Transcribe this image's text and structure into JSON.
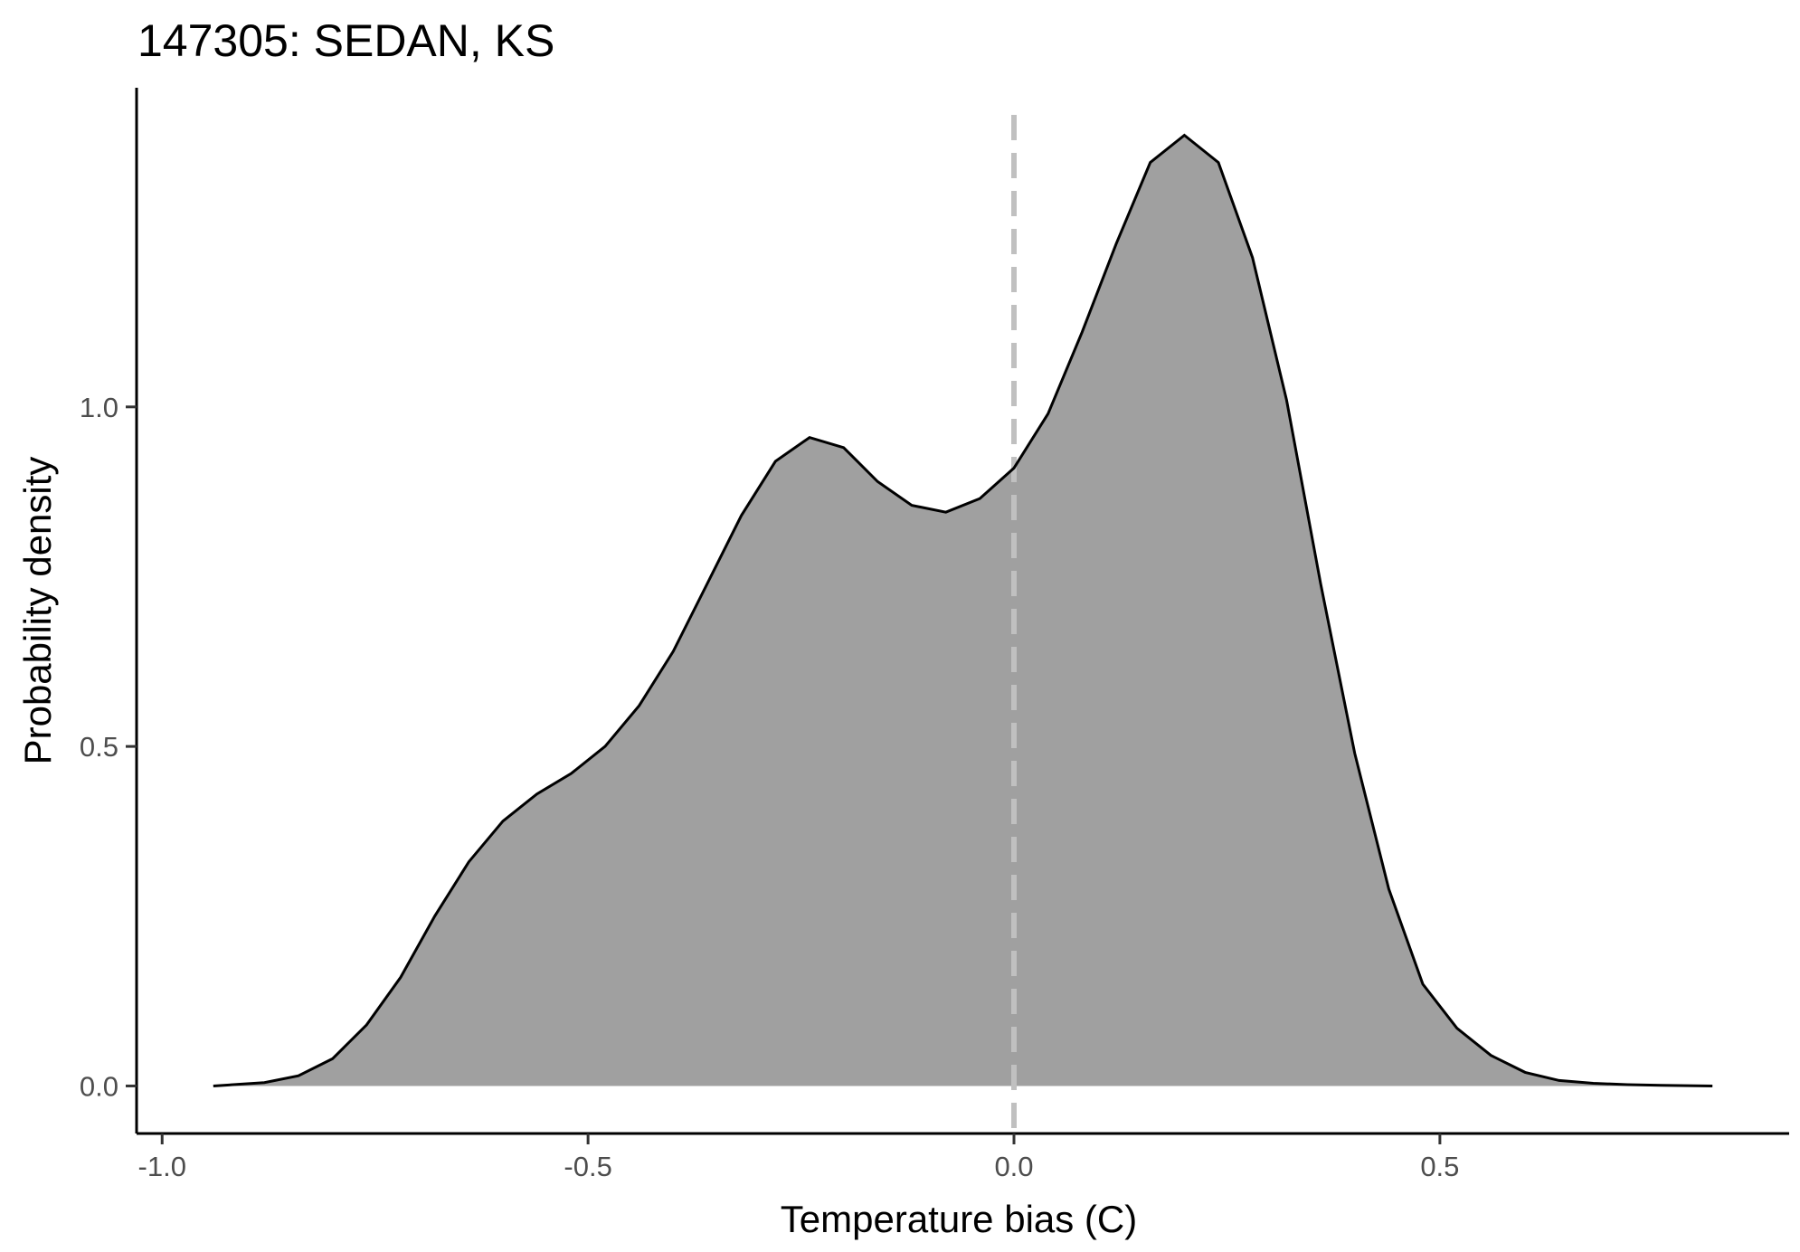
{
  "chart_data": {
    "type": "area",
    "title": "147305: SEDAN, KS",
    "xlabel": "Temperature bias (C)",
    "ylabel": "Probability density",
    "xlim": [
      -1.03,
      0.91
    ],
    "ylim": [
      -0.07,
      1.47
    ],
    "xticks": [
      -1.0,
      -0.5,
      0.0,
      0.5
    ],
    "xtick_labels": [
      "-1.0",
      "-0.5",
      "0.0",
      "0.5"
    ],
    "yticks": [
      0.0,
      0.5,
      1.0
    ],
    "ytick_labels": [
      "0.0",
      "0.5",
      "1.0"
    ],
    "grid": false,
    "reference_line": {
      "x": 0.0,
      "style": "dashed",
      "color": "#c0c0c0"
    },
    "fill_color": "#a0a0a0",
    "line_color": "#000000",
    "series": [
      {
        "x": [
          -0.94,
          -0.88,
          -0.84,
          -0.8,
          -0.76,
          -0.72,
          -0.68,
          -0.64,
          -0.6,
          -0.56,
          -0.52,
          -0.48,
          -0.44,
          -0.4,
          -0.36,
          -0.32,
          -0.28,
          -0.24,
          -0.2,
          -0.16,
          -0.12,
          -0.08,
          -0.04,
          0.0,
          0.04,
          0.08,
          0.12,
          0.16,
          0.2,
          0.24,
          0.28,
          0.32,
          0.36,
          0.4,
          0.44,
          0.48,
          0.52,
          0.56,
          0.6,
          0.64,
          0.68,
          0.72,
          0.76,
          0.82
        ],
        "y": [
          0.0,
          0.005,
          0.015,
          0.04,
          0.09,
          0.16,
          0.25,
          0.33,
          0.39,
          0.43,
          0.46,
          0.5,
          0.56,
          0.64,
          0.74,
          0.84,
          0.92,
          0.955,
          0.94,
          0.89,
          0.855,
          0.845,
          0.865,
          0.91,
          0.99,
          1.11,
          1.24,
          1.36,
          1.4,
          1.36,
          1.22,
          1.01,
          0.74,
          0.49,
          0.29,
          0.15,
          0.085,
          0.045,
          0.02,
          0.008,
          0.004,
          0.002,
          0.001,
          0.0
        ]
      }
    ]
  }
}
